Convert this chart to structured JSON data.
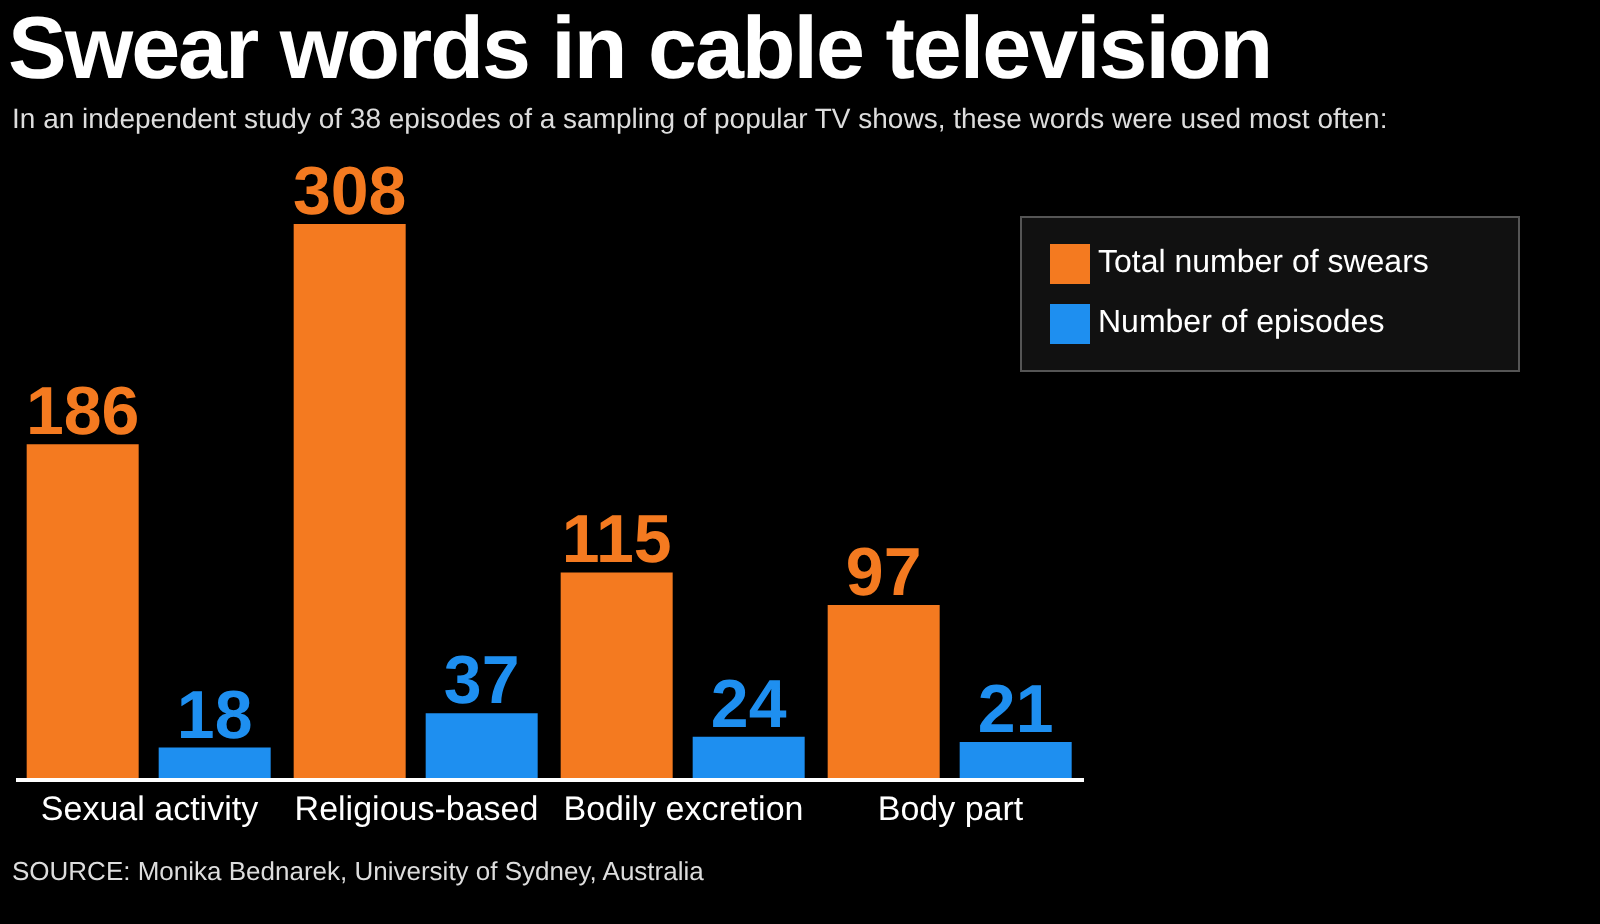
{
  "chart_data": {
    "type": "bar",
    "title": "Swear words in cable television",
    "subtitle": "In an independent study of 38 episodes of a sampling of popular TV shows, these words were used most often:",
    "categories": [
      "Sexual activity",
      "Religious-based",
      "Bodily excretion",
      "Body part"
    ],
    "series": [
      {
        "name": "Total number of swears",
        "color": "#f47a20",
        "values": [
          186,
          308,
          115,
          97
        ]
      },
      {
        "name": "Number of episodes",
        "color": "#1e8ff0",
        "values": [
          18,
          37,
          24,
          21
        ]
      }
    ],
    "data_labels": true,
    "legend": "top right",
    "annotations": [
      "SOURCE: Monika Bednarek, University of Sydney, Australia"
    ]
  }
}
